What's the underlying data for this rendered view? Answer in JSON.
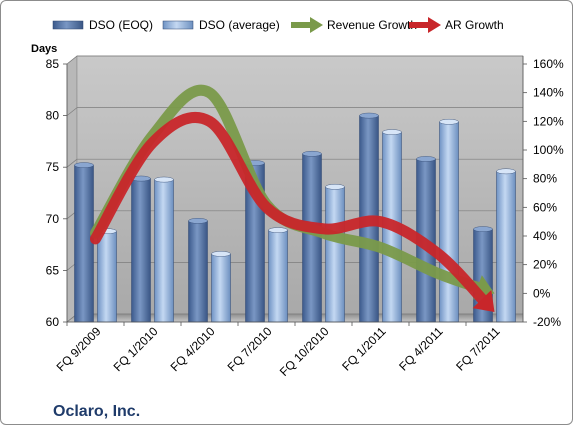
{
  "company": "Oclaro, Inc.",
  "chart_data": {
    "type": "bar",
    "title": "",
    "categories": [
      "FQ 9/2009",
      "FQ 1/2010",
      "FQ 4/2010",
      "FQ 7/2010",
      "FQ 10/2010",
      "FQ 1/2011",
      "FQ 4/2011",
      "FQ 7/2011"
    ],
    "ylabel": "Days",
    "ylim": [
      60,
      85
    ],
    "y_ticks": [
      "60",
      "65",
      "70",
      "75",
      "80",
      "85"
    ],
    "y2lim": [
      -20,
      160
    ],
    "y2_ticks": [
      "-20%",
      "0%",
      "20%",
      "40%",
      "60%",
      "80%",
      "100%",
      "120%",
      "140%",
      "160%"
    ],
    "grid": true,
    "legend_position": "top",
    "series": [
      {
        "name": "DSO (EOQ)",
        "type": "bar",
        "axis": "left",
        "color": "#4f6fa0",
        "values": [
          75.2,
          73.9,
          69.8,
          75.4,
          76.3,
          80.0,
          75.8,
          69.0
        ]
      },
      {
        "name": "DSO (average)",
        "type": "bar",
        "axis": "left",
        "color": "#9dbbe0",
        "values": [
          68.8,
          73.8,
          66.6,
          68.9,
          73.1,
          78.4,
          79.4,
          74.6
        ]
      },
      {
        "name": "Revenue Growth",
        "type": "line",
        "axis": "right",
        "color": "#7a9a4a",
        "values": [
          42,
          110,
          140,
          62,
          42,
          32,
          14,
          0
        ]
      },
      {
        "name": "AR Growth",
        "type": "line",
        "axis": "right",
        "color": "#c8262a",
        "values": [
          38,
          105,
          120,
          60,
          45,
          50,
          28,
          -13
        ]
      }
    ]
  }
}
